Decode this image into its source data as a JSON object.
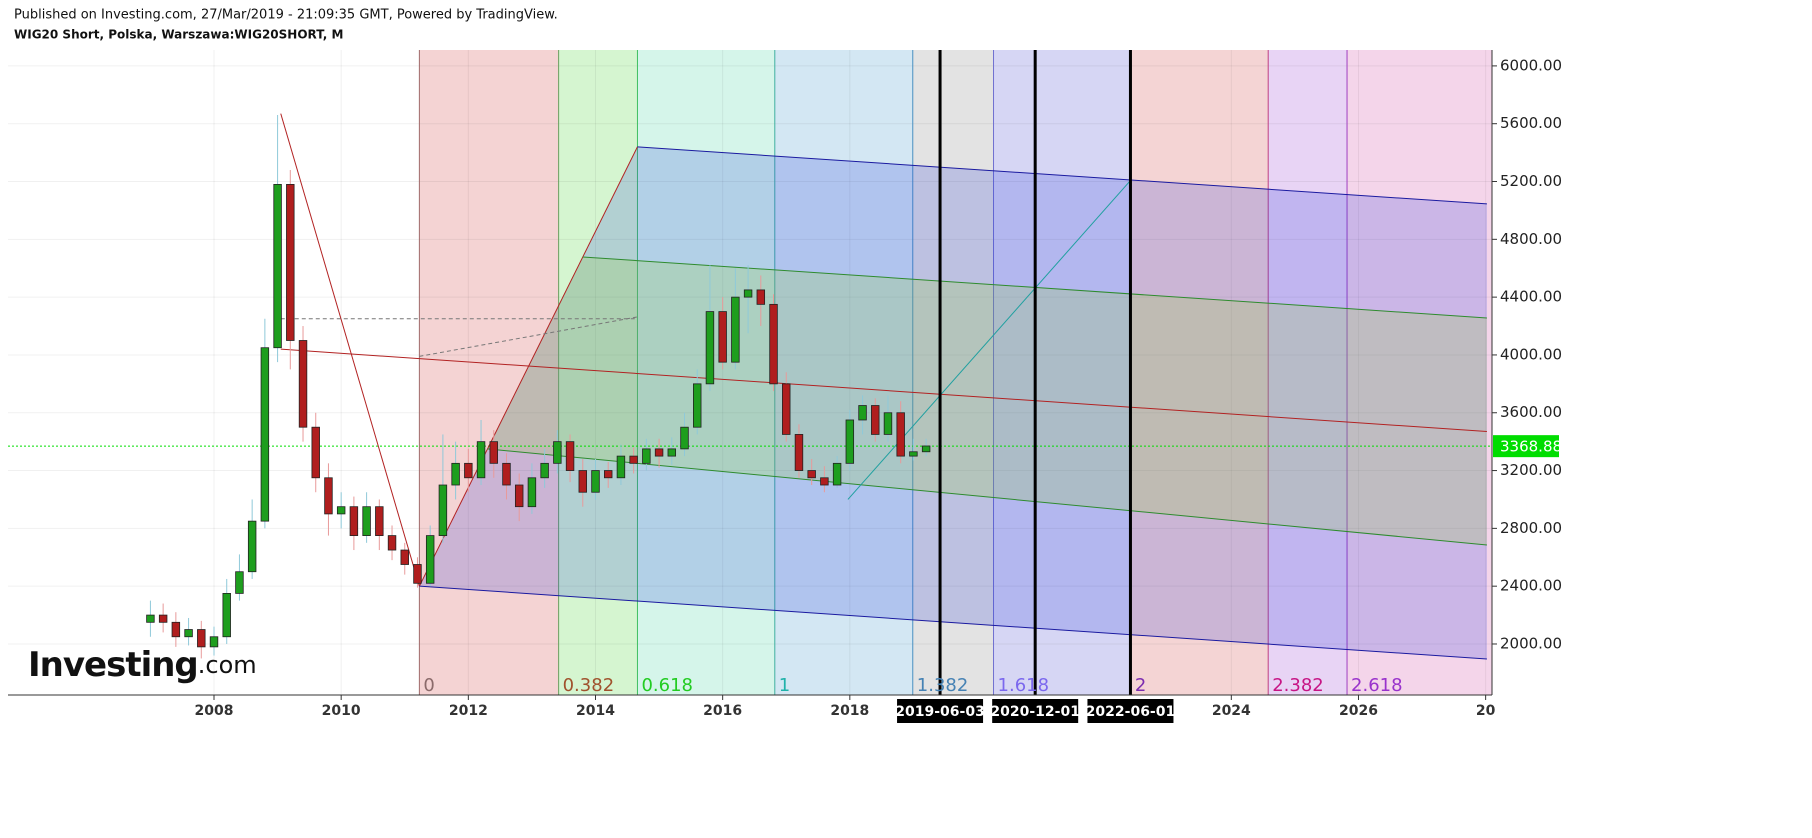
{
  "header": {
    "published": "Published on Investing.com, 27/Mar/2019 - 21:09:35 GMT, Powered by TradingView.",
    "symbol": "WIG20 Short, Polska, Warszawa:WIG20SHORT, M"
  },
  "logo": {
    "main": "Investing",
    "suffix": ".com"
  },
  "chart_data": {
    "type": "candlestick",
    "grid": true,
    "up_color": "#1e9e1e",
    "down_color": "#b01e1e",
    "xlim": [
      2004.76,
      2028.1
    ],
    "xticks": [
      2008,
      2010,
      2012,
      2014,
      2016,
      2018,
      2024,
      2026,
      {
        "value": 2028,
        "label": "20"
      }
    ],
    "ylim": [
      1647,
      6110
    ],
    "yticks": [
      {
        "value": 2000,
        "label": "2000.00"
      },
      {
        "value": 2400,
        "label": "2400.00"
      },
      {
        "value": 2800,
        "label": "2800.00"
      },
      {
        "value": 3200,
        "label": "3200.00"
      },
      {
        "value": 3600,
        "label": "3600.00"
      },
      {
        "value": 4000,
        "label": "4000.00"
      },
      {
        "value": 4400,
        "label": "4400.00"
      },
      {
        "value": 4800,
        "label": "4800.00"
      },
      {
        "value": 5200,
        "label": "5200.00"
      },
      {
        "value": 5600,
        "label": "5600.00"
      },
      {
        "value": 6000,
        "label": "6000.00"
      }
    ],
    "x": [
      2007.0,
      2007.2,
      2007.4,
      2007.6,
      2007.8,
      2008.0,
      2008.2,
      2008.4,
      2008.6,
      2008.8,
      2009.0,
      2009.2,
      2009.4,
      2009.6,
      2009.8,
      2010.0,
      2010.2,
      2010.4,
      2010.6,
      2010.8,
      2011.0,
      2011.2,
      2011.4,
      2011.6,
      2011.8,
      2012.0,
      2012.2,
      2012.4,
      2012.6,
      2012.8,
      2013.0,
      2013.2,
      2013.4,
      2013.6,
      2013.8,
      2014.0,
      2014.2,
      2014.4,
      2014.6,
      2014.8,
      2015.0,
      2015.2,
      2015.4,
      2015.6,
      2015.8,
      2016.0,
      2016.2,
      2016.4,
      2016.6,
      2016.8,
      2017.0,
      2017.2,
      2017.4,
      2017.6,
      2017.8,
      2018.0,
      2018.2,
      2018.4,
      2018.6,
      2018.8,
      2019.0,
      2019.2
    ],
    "open": [
      2150,
      2200,
      2150,
      2050,
      2100,
      1980,
      2050,
      2350,
      2500,
      2850,
      4050,
      5180,
      4100,
      3500,
      3150,
      2900,
      2950,
      2750,
      2950,
      2750,
      2650,
      2550,
      2420,
      2750,
      3100,
      3250,
      3150,
      3400,
      3250,
      3100,
      2950,
      3150,
      3250,
      3400,
      3200,
      3050,
      3200,
      3150,
      3300,
      3250,
      3350,
      3300,
      3350,
      3500,
      3800,
      4300,
      3950,
      4400,
      4450,
      4350,
      3800,
      3450,
      3200,
      3150,
      3100,
      3250,
      3550,
      3650,
      3450,
      3600,
      3300,
      3330
    ],
    "high": [
      2300,
      2280,
      2220,
      2180,
      2160,
      2120,
      2450,
      2620,
      3000,
      4250,
      5660,
      5280,
      4200,
      3600,
      3250,
      3050,
      3020,
      3050,
      3000,
      2820,
      2700,
      2600,
      2820,
      3450,
      3400,
      3350,
      3550,
      3480,
      3320,
      3180,
      3250,
      3350,
      3480,
      3450,
      3280,
      3280,
      3260,
      3380,
      3360,
      3420,
      3420,
      3430,
      3600,
      3900,
      4620,
      4400,
      4600,
      4620,
      4550,
      4420,
      3880,
      3520,
      3280,
      3230,
      3300,
      3620,
      3720,
      3700,
      3720,
      3680,
      3420,
      3420
    ],
    "low": [
      2050,
      2080,
      1980,
      1990,
      1900,
      1920,
      2000,
      2300,
      2450,
      2800,
      3950,
      3900,
      3400,
      3050,
      2750,
      2800,
      2650,
      2700,
      2650,
      2580,
      2480,
      2390,
      2400,
      2700,
      3000,
      3050,
      3100,
      3150,
      3000,
      2850,
      2900,
      3080,
      3180,
      3120,
      2950,
      3000,
      3080,
      3100,
      3180,
      3200,
      3220,
      3240,
      3300,
      3450,
      3750,
      3900,
      3900,
      4150,
      4200,
      3750,
      3400,
      3150,
      3100,
      3050,
      3080,
      3200,
      3450,
      3400,
      3400,
      3250,
      3270,
      3300
    ],
    "close": [
      2200,
      2150,
      2050,
      2100,
      1980,
      2050,
      2350,
      2500,
      2850,
      4050,
      5180,
      4100,
      3500,
      3150,
      2900,
      2950,
      2750,
      2950,
      2750,
      2650,
      2550,
      2420,
      2750,
      3100,
      3250,
      3150,
      3400,
      3250,
      3100,
      2950,
      3150,
      3250,
      3400,
      3200,
      3050,
      3200,
      3150,
      3300,
      3250,
      3350,
      3300,
      3350,
      3500,
      3800,
      4300,
      3950,
      4400,
      4450,
      4350,
      3800,
      3450,
      3200,
      3150,
      3100,
      3250,
      3550,
      3650,
      3450,
      3600,
      3300,
      3330,
      3370
    ],
    "last_price": 3368.88,
    "last_price_color": "#00dd00",
    "fib_time_zones": {
      "levels": [
        {
          "ratio": 0,
          "x": 2011.23,
          "line": "#a06a6a",
          "text": "#8b6b6b",
          "fill": "#f4d3d3"
        },
        {
          "ratio": 0.382,
          "x": 2013.42,
          "line": "#6aa060",
          "text": "#a0522d",
          "fill": "#d5f5d0"
        },
        {
          "ratio": 0.618,
          "x": 2014.66,
          "line": "#40c060",
          "text": "#22cc22",
          "fill": "#d5f5ea"
        },
        {
          "ratio": 1,
          "x": 2016.82,
          "line": "#40b0a0",
          "text": "#20b2aa",
          "fill": "#d3e7f3"
        },
        {
          "ratio": 1.382,
          "x": 2018.99,
          "line": "#4a90c0",
          "text": "#4682b4",
          "fill": "#e3e3e3"
        },
        {
          "ratio": 1.618,
          "x": 2020.26,
          "line": "#7070d0",
          "text": "#7b68ee",
          "fill": "#d6d6f4"
        },
        {
          "ratio": 2,
          "x": 2022.42,
          "line": "#7b2bb0",
          "text": "#7b2bb0",
          "fill": "#f4d4d4"
        },
        {
          "ratio": 2.382,
          "x": 2024.58,
          "line": "#c04080",
          "text": "#c71585",
          "fill": "#e8d4f5"
        },
        {
          "ratio": 2.618,
          "x": 2025.82,
          "line": "#a040c0",
          "text": "#9932cc",
          "fill": "#f4d5ea"
        }
      ]
    },
    "time_markers": [
      "2019-06-03",
      "2020-12-01",
      "2022-06-01"
    ],
    "fills": [
      {
        "color": "rgba(40,60,220,0.2)",
        "points": [
          [
            2011.23,
            2400
          ],
          [
            2014.66,
            5440
          ],
          [
            2028.02,
            5045
          ],
          [
            2028.02,
            1896
          ]
        ]
      },
      {
        "color": "rgba(150,210,60,0.22)",
        "points": [
          [
            2013.8,
            4678
          ],
          [
            2028.02,
            4256
          ],
          [
            2028.02,
            2685
          ],
          [
            2012.3,
            3350
          ]
        ]
      }
    ],
    "lines": [
      {
        "color": "#b22222",
        "from": [
          2009.05,
          5670
        ],
        "to": [
          2011.23,
          2400
        ]
      },
      {
        "color": "#b22222",
        "from": [
          2011.23,
          2400
        ],
        "to": [
          2014.66,
          5440
        ]
      },
      {
        "color": "#b22222",
        "from": [
          2009.05,
          4040
        ],
        "to": [
          2028.02,
          3470
        ]
      },
      {
        "color": "#1a1aa0",
        "from": [
          2014.66,
          5440
        ],
        "to": [
          2028.02,
          5045
        ]
      },
      {
        "color": "#1a1aa0",
        "from": [
          2011.23,
          2400
        ],
        "to": [
          2028.02,
          1896
        ]
      },
      {
        "color": "#2e8b2e",
        "from": [
          2013.8,
          4678
        ],
        "to": [
          2028.02,
          4256
        ]
      },
      {
        "color": "#2e8b2e",
        "from": [
          2012.3,
          3350
        ],
        "to": [
          2028.02,
          2685
        ]
      },
      {
        "color": "#777777",
        "dashed": true,
        "from": [
          2009.05,
          4250
        ],
        "to": [
          2014.66,
          4250
        ]
      },
      {
        "color": "#777777",
        "dashed": true,
        "from": [
          2011.23,
          3990
        ],
        "to": [
          2014.66,
          4263
        ]
      },
      {
        "color": "#20a0a0",
        "from": [
          2017.97,
          3000
        ],
        "to": [
          2022.42,
          5210
        ]
      }
    ]
  }
}
